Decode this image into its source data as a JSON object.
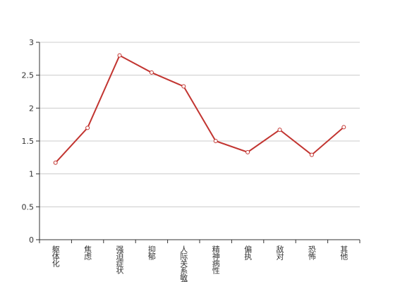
{
  "chart_data": {
    "type": "line",
    "categories": [
      "躯体化",
      "焦虑",
      "强迫症状",
      "抑郁",
      "人际关系敏感",
      "精神病性",
      "偏执",
      "敌对",
      "恐怖",
      "其他"
    ],
    "values": [
      1.17,
      1.7,
      2.8,
      2.54,
      2.33,
      1.5,
      1.33,
      1.67,
      1.29,
      1.71
    ],
    "color": "#c23531",
    "ylim": [
      0,
      3
    ],
    "yticks": [
      0,
      0.5,
      1,
      1.5,
      2,
      2.5,
      3
    ],
    "grid": true
  }
}
